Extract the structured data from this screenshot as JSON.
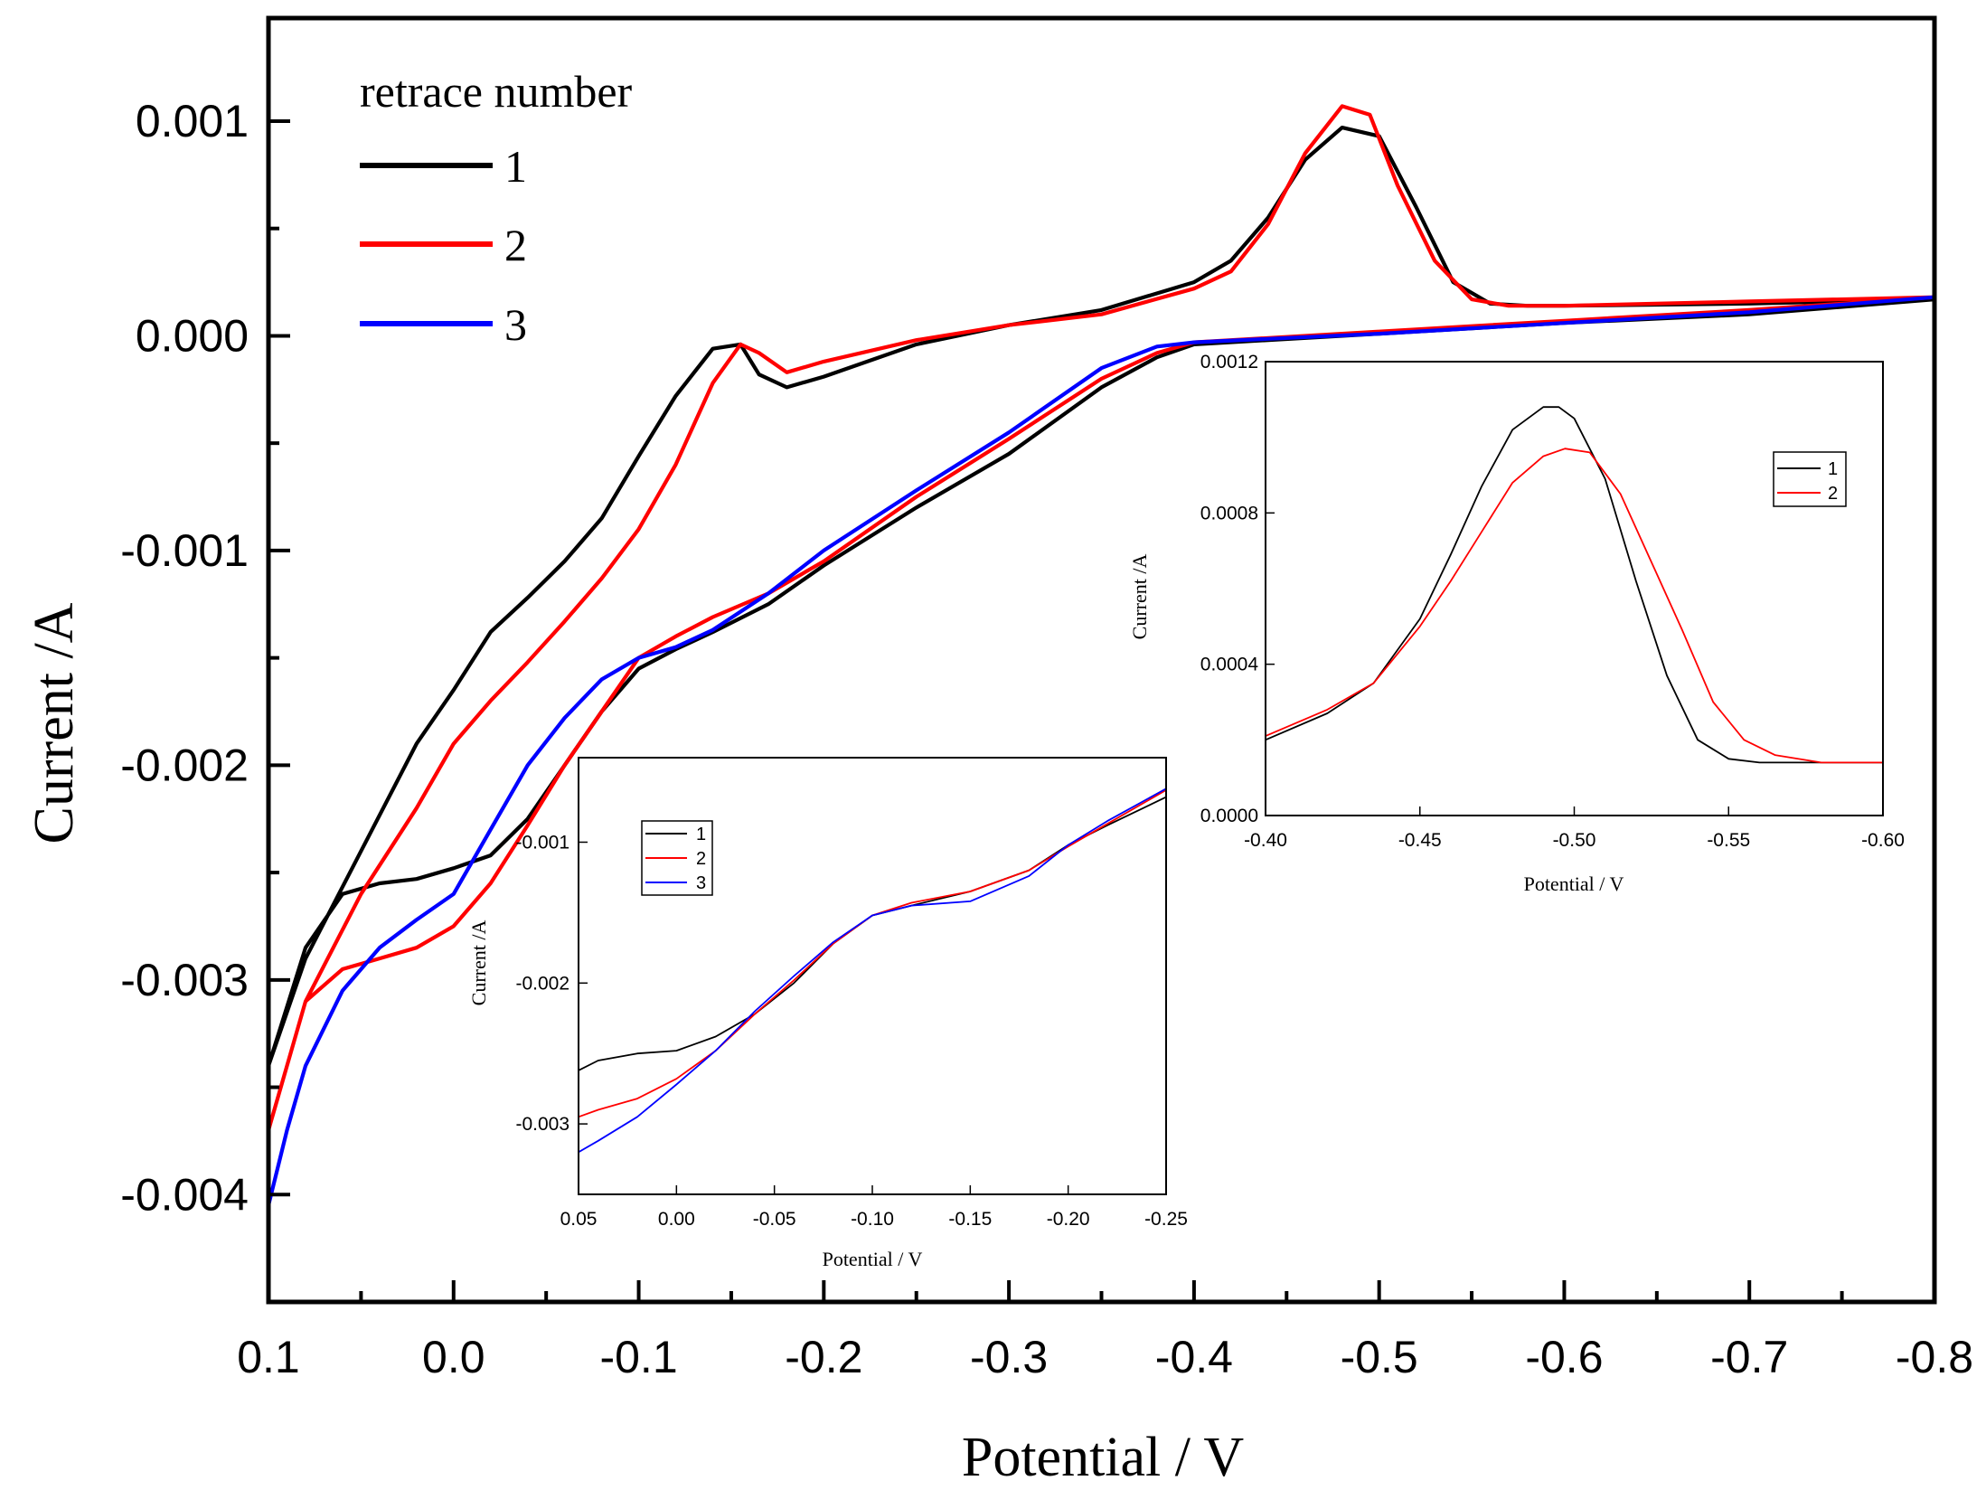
{
  "chart_data": [
    {
      "id": "main",
      "type": "line",
      "title": "",
      "xlabel": "Potential / V",
      "ylabel": "Current /A",
      "xlim": [
        0.1,
        -0.8
      ],
      "ylim": [
        -0.0045,
        0.00148
      ],
      "x_ticks": [
        0.1,
        0.0,
        -0.1,
        -0.2,
        -0.3,
        -0.4,
        -0.5,
        -0.6,
        -0.7,
        -0.8
      ],
      "x_tick_labels": [
        "0.1",
        "0.0",
        "-0.1",
        "-0.2",
        "-0.3",
        "-0.4",
        "-0.5",
        "-0.6",
        "-0.7",
        "-0.8"
      ],
      "y_ticks": [
        0.001,
        0.0,
        -0.001,
        -0.002,
        -0.003,
        -0.004
      ],
      "y_tick_labels": [
        "0.001",
        "0.000",
        "-0.001",
        "-0.002",
        "-0.003",
        "-0.004"
      ],
      "legend_title": "retrace number",
      "legend_position": "top-left",
      "grid": false,
      "series": [
        {
          "name": "1",
          "color": "#000000",
          "x": [
            0.1,
            0.08,
            0.05,
            0.02,
            0.0,
            -0.02,
            -0.04,
            -0.06,
            -0.08,
            -0.1,
            -0.12,
            -0.14,
            -0.155,
            -0.165,
            -0.18,
            -0.2,
            -0.25,
            -0.3,
            -0.35,
            -0.4,
            -0.42,
            -0.44,
            -0.46,
            -0.48,
            -0.5,
            -0.52,
            -0.54,
            -0.56,
            -0.58,
            -0.6,
            -0.7,
            -0.8,
            -0.7,
            -0.6,
            -0.5,
            -0.4,
            -0.38,
            -0.35,
            -0.3,
            -0.25,
            -0.2,
            -0.17,
            -0.14,
            -0.12,
            -0.1,
            -0.08,
            -0.06,
            -0.04,
            -0.02,
            0.0,
            0.02,
            0.04,
            0.06,
            0.08,
            0.1
          ],
          "y": [
            -0.0034,
            -0.0029,
            -0.0024,
            -0.0019,
            -0.00165,
            -0.00138,
            -0.00122,
            -0.00105,
            -0.00085,
            -0.00056,
            -0.00028,
            -6e-05,
            -4e-05,
            -0.00018,
            -0.00024,
            -0.00019,
            -4e-05,
            5e-05,
            0.00012,
            0.00025,
            0.00035,
            0.00055,
            0.00082,
            0.00097,
            0.00093,
            0.0006,
            0.00025,
            0.00015,
            0.00014,
            0.00014,
            0.00015,
            0.00017,
            0.0001,
            6e-05,
            1e-05,
            -4e-05,
            -0.0001,
            -0.00024,
            -0.00055,
            -0.0008,
            -0.00107,
            -0.00125,
            -0.00138,
            -0.00146,
            -0.00155,
            -0.00175,
            -0.002,
            -0.00225,
            -0.00242,
            -0.00248,
            -0.00253,
            -0.00255,
            -0.0026,
            -0.00285,
            -0.0034
          ]
        },
        {
          "name": "2",
          "color": "#ff0000",
          "x": [
            0.1,
            0.08,
            0.05,
            0.02,
            0.0,
            -0.02,
            -0.04,
            -0.06,
            -0.08,
            -0.1,
            -0.12,
            -0.14,
            -0.155,
            -0.165,
            -0.18,
            -0.2,
            -0.25,
            -0.3,
            -0.35,
            -0.4,
            -0.42,
            -0.44,
            -0.46,
            -0.48,
            -0.495,
            -0.51,
            -0.53,
            -0.55,
            -0.57,
            -0.6,
            -0.7,
            -0.8,
            -0.7,
            -0.6,
            -0.5,
            -0.4,
            -0.38,
            -0.35,
            -0.3,
            -0.25,
            -0.2,
            -0.17,
            -0.14,
            -0.12,
            -0.1,
            -0.08,
            -0.06,
            -0.04,
            -0.02,
            0.0,
            0.02,
            0.04,
            0.06,
            0.08,
            0.1
          ],
          "y": [
            -0.0037,
            -0.0031,
            -0.0026,
            -0.0022,
            -0.0019,
            -0.0017,
            -0.00152,
            -0.00133,
            -0.00113,
            -0.0009,
            -0.0006,
            -0.00022,
            -4e-05,
            -8e-05,
            -0.00017,
            -0.00012,
            -2e-05,
            5e-05,
            0.0001,
            0.00022,
            0.0003,
            0.00052,
            0.00085,
            0.00107,
            0.00103,
            0.0007,
            0.00035,
            0.00017,
            0.00014,
            0.00014,
            0.00016,
            0.00018,
            0.00012,
            7e-05,
            2e-05,
            -3e-05,
            -8e-05,
            -0.0002,
            -0.00048,
            -0.00075,
            -0.00105,
            -0.0012,
            -0.00131,
            -0.0014,
            -0.0015,
            -0.00175,
            -0.002,
            -0.00228,
            -0.00255,
            -0.00275,
            -0.00285,
            -0.0029,
            -0.00295,
            -0.0031,
            -0.0037
          ]
        },
        {
          "name": "3",
          "color": "#0000ff",
          "x": [
            0.1,
            0.09,
            0.08,
            0.06,
            0.04,
            0.02,
            0.0,
            -0.02,
            -0.04,
            -0.06,
            -0.08,
            -0.1,
            -0.12,
            -0.14,
            -0.17,
            -0.2,
            -0.25,
            -0.3,
            -0.35,
            -0.38,
            -0.4,
            -0.5,
            -0.6,
            -0.7,
            -0.8
          ],
          "y": [
            -0.00405,
            -0.0037,
            -0.0034,
            -0.00305,
            -0.00285,
            -0.00272,
            -0.0026,
            -0.0023,
            -0.002,
            -0.00178,
            -0.0016,
            -0.0015,
            -0.00145,
            -0.00137,
            -0.0012,
            -0.001,
            -0.00072,
            -0.00045,
            -0.00015,
            -5e-05,
            -3e-05,
            1e-05,
            6e-05,
            0.00011,
            0.00018
          ]
        }
      ]
    },
    {
      "id": "inset1",
      "type": "line",
      "xlabel": "Potential / V",
      "ylabel": "Current /A",
      "xlim": [
        0.05,
        -0.25
      ],
      "ylim": [
        -0.0035,
        -0.0004
      ],
      "x_ticks": [
        0.05,
        0.0,
        -0.05,
        -0.1,
        -0.15,
        -0.2,
        -0.25
      ],
      "x_tick_labels": [
        "0.05",
        "0.00",
        "-0.05",
        "-0.10",
        "-0.15",
        "-0.20",
        "-0.25"
      ],
      "y_ticks": [
        -0.001,
        -0.002,
        -0.003
      ],
      "y_tick_labels": [
        "-0.001",
        "-0.002",
        "-0.003"
      ],
      "legend_position": "top-left",
      "series": [
        {
          "name": "1",
          "color": "#000000",
          "x": [
            0.05,
            0.04,
            0.02,
            0.0,
            -0.02,
            -0.04,
            -0.06,
            -0.08,
            -0.1,
            -0.12,
            -0.15,
            -0.18,
            -0.2,
            -0.22,
            -0.25
          ],
          "y": [
            -0.00262,
            -0.00255,
            -0.0025,
            -0.00248,
            -0.00238,
            -0.00222,
            -0.002,
            -0.00172,
            -0.00152,
            -0.00145,
            -0.00135,
            -0.0012,
            -0.00102,
            -0.00088,
            -0.00068
          ]
        },
        {
          "name": "2",
          "color": "#ff0000",
          "x": [
            0.05,
            0.04,
            0.02,
            0.0,
            -0.02,
            -0.04,
            -0.06,
            -0.08,
            -0.1,
            -0.12,
            -0.15,
            -0.18,
            -0.2,
            -0.22,
            -0.25
          ],
          "y": [
            -0.00295,
            -0.0029,
            -0.00282,
            -0.00268,
            -0.00248,
            -0.00222,
            -0.00198,
            -0.00172,
            -0.00152,
            -0.00143,
            -0.00135,
            -0.0012,
            -0.00103,
            -0.00087,
            -0.00063
          ]
        },
        {
          "name": "3",
          "color": "#0000ff",
          "x": [
            0.05,
            0.04,
            0.02,
            0.0,
            -0.02,
            -0.04,
            -0.06,
            -0.08,
            -0.1,
            -0.12,
            -0.15,
            -0.18,
            -0.2,
            -0.22,
            -0.25
          ],
          "y": [
            -0.0032,
            -0.00312,
            -0.00295,
            -0.00272,
            -0.00248,
            -0.0022,
            -0.00195,
            -0.00171,
            -0.00152,
            -0.00145,
            -0.00142,
            -0.00124,
            -0.00102,
            -0.00085,
            -0.00062
          ]
        }
      ]
    },
    {
      "id": "inset2",
      "type": "line",
      "xlabel": "Potential / V",
      "ylabel": "Current /A",
      "xlim": [
        -0.4,
        -0.6
      ],
      "ylim": [
        0.0,
        0.0012
      ],
      "x_ticks": [
        -0.4,
        -0.45,
        -0.5,
        -0.55,
        -0.6
      ],
      "x_tick_labels": [
        "-0.40",
        "-0.45",
        "-0.50",
        "-0.55",
        "-0.60"
      ],
      "y_ticks": [
        0.0,
        0.0004,
        0.0008,
        0.0012
      ],
      "y_tick_labels": [
        "0.0000",
        "0.0004",
        "0.0008",
        "0.0012"
      ],
      "legend_position": "top-right",
      "series": [
        {
          "name": "1",
          "color": "#000000",
          "x": [
            -0.4,
            -0.42,
            -0.435,
            -0.45,
            -0.46,
            -0.47,
            -0.48,
            -0.49,
            -0.495,
            -0.5,
            -0.51,
            -0.52,
            -0.53,
            -0.54,
            -0.55,
            -0.56,
            -0.58,
            -0.6
          ],
          "y": [
            0.0002,
            0.00027,
            0.00035,
            0.00052,
            0.00069,
            0.00087,
            0.00102,
            0.00108,
            0.00108,
            0.00105,
            0.00089,
            0.00062,
            0.00037,
            0.0002,
            0.00015,
            0.00014,
            0.00014,
            0.00014
          ]
        },
        {
          "name": "2",
          "color": "#ff0000",
          "x": [
            -0.4,
            -0.42,
            -0.435,
            -0.45,
            -0.46,
            -0.47,
            -0.48,
            -0.49,
            -0.497,
            -0.505,
            -0.515,
            -0.525,
            -0.535,
            -0.545,
            -0.555,
            -0.565,
            -0.58,
            -0.6
          ],
          "y": [
            0.00021,
            0.00028,
            0.00035,
            0.0005,
            0.00062,
            0.00075,
            0.00088,
            0.00095,
            0.00097,
            0.00096,
            0.00085,
            0.00067,
            0.00049,
            0.0003,
            0.0002,
            0.00016,
            0.00014,
            0.00014
          ]
        }
      ]
    }
  ]
}
